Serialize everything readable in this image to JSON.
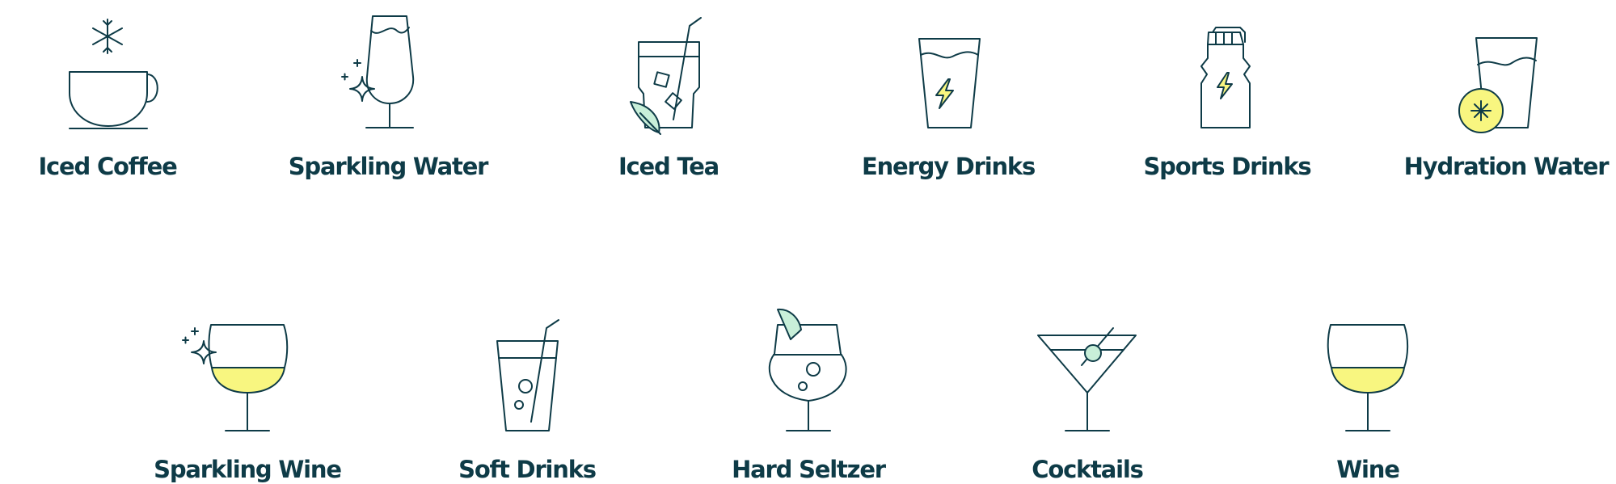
{
  "colors": {
    "ink": "#0e3b47",
    "yellow_fill": "#f8f680",
    "mint_fill": "#c8efd9",
    "background": "#ffffff"
  },
  "drinks": [
    {
      "label": "Iced Coffee",
      "icon": "iced-coffee-cup-with-snowflake-icon"
    },
    {
      "label": "Sparkling Water",
      "icon": "sparkling-water-flute-with-sparkle-icon"
    },
    {
      "label": "Iced Tea",
      "icon": "iced-tea-glass-with-straw-leaf-icon"
    },
    {
      "label": "Energy Drinks",
      "icon": "energy-drink-cup-with-lightning-icon"
    },
    {
      "label": "Sports Drinks",
      "icon": "sports-drink-bottle-with-lightning-icon"
    },
    {
      "label": "Hydration Water",
      "icon": "hydration-water-glass-with-lemon-icon"
    },
    {
      "label": "Sparkling Wine",
      "icon": "sparkling-wine-glass-with-sparkle-icon"
    },
    {
      "label": "Soft Drinks",
      "icon": "soft-drink-cup-with-straw-icon"
    },
    {
      "label": "Hard Seltzer",
      "icon": "hard-seltzer-glass-with-lime-icon"
    },
    {
      "label": "Cocktails",
      "icon": "martini-glass-with-olive-icon"
    },
    {
      "label": "Wine",
      "icon": "wine-glass-icon"
    }
  ]
}
